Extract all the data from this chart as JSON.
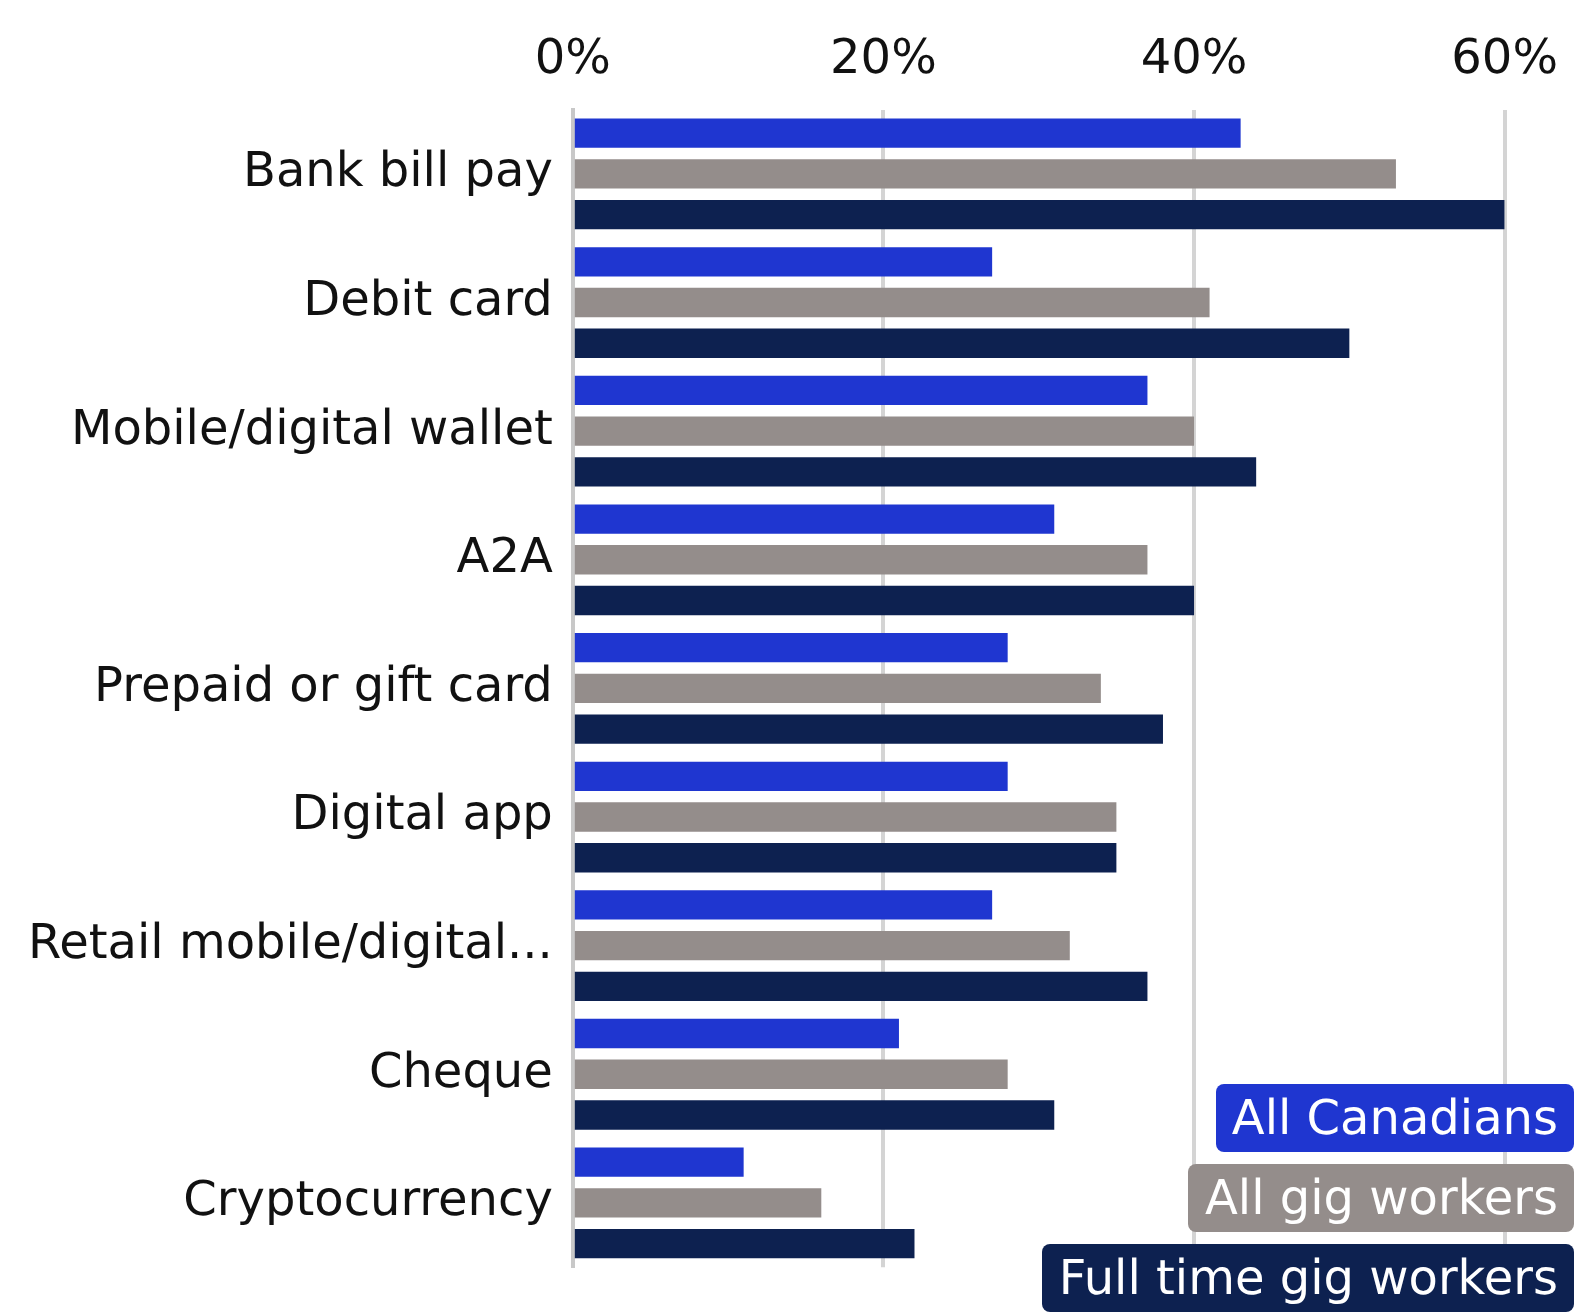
{
  "chart_data": {
    "type": "bar",
    "orientation": "horizontal",
    "categories": [
      "Bank bill pay",
      "Debit card",
      "Mobile/digital wallet",
      "A2A",
      "Prepaid or gift card",
      "Digital app",
      "Retail mobile/digital...",
      "Cheque",
      "Cryptocurrency"
    ],
    "series": [
      {
        "name": "All Canadians",
        "color": "#1f36d0",
        "values": [
          43,
          27,
          37,
          31,
          28,
          28,
          27,
          21,
          11
        ]
      },
      {
        "name": "All gig workers",
        "color": "#948d8b",
        "values": [
          53,
          41,
          40,
          37,
          34,
          35,
          32,
          28,
          16
        ]
      },
      {
        "name": "Full time gig workers",
        "color": "#0d2150",
        "values": [
          60,
          50,
          44,
          40,
          38,
          35,
          37,
          31,
          22
        ]
      }
    ],
    "xlim": [
      0,
      60
    ],
    "xticks": [
      {
        "value": 0,
        "label": "0%"
      },
      {
        "value": 20,
        "label": "20%"
      },
      {
        "value": 40,
        "label": "40%"
      },
      {
        "value": 60,
        "label": "60%"
      }
    ],
    "grid": "x",
    "legend": "bottom right"
  }
}
